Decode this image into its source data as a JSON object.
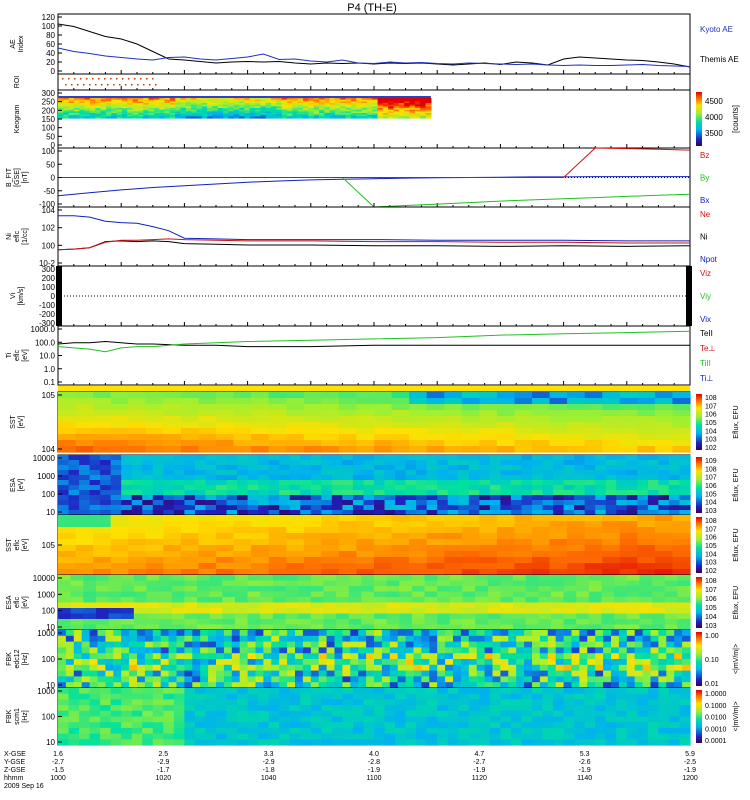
{
  "title": "P4 (TH-E)",
  "colors": {
    "kyoto": "#2030c0",
    "themis": "#000000",
    "red": "#d01010",
    "green": "#20c020",
    "blue": "#1020c0"
  },
  "chart_data": [
    {
      "id": "ae",
      "type": "line",
      "ylabel": "AE Index",
      "yticks": [
        "120",
        "100",
        "80",
        "60",
        "40",
        "20",
        "0"
      ],
      "legend": [
        "Kyoto AE",
        "Themis AE"
      ],
      "x": [
        1000,
        1005,
        1010,
        1015,
        1020,
        1025,
        1030,
        1035,
        1040,
        1045,
        1050,
        1055,
        1060,
        1065,
        1070,
        1075,
        1080,
        1085,
        1090,
        1095,
        1100,
        1105,
        1110,
        1115,
        1120,
        1125,
        1130,
        1135,
        1140,
        1145,
        1150,
        1155,
        1160,
        1165,
        1170,
        1175,
        1180,
        1185,
        1190,
        1195,
        1200
      ],
      "series": [
        {
          "name": "Kyoto AE",
          "values": [
            52,
            45,
            41,
            36,
            33,
            30,
            28,
            33,
            34,
            30,
            28,
            31,
            34,
            40,
            29,
            30,
            26,
            24,
            28,
            22,
            21,
            24,
            22,
            23,
            21,
            20,
            22,
            21,
            20,
            19,
            20,
            18,
            17,
            18,
            17,
            17,
            18,
            19,
            17,
            16,
            15
          ]
        },
        {
          "name": "Themis AE",
          "values": [
            100,
            95,
            85,
            75,
            70,
            60,
            45,
            30,
            28,
            25,
            22,
            24,
            25,
            24,
            25,
            22,
            20,
            22,
            21,
            22,
            20,
            22,
            21,
            22,
            20,
            18,
            20,
            22,
            19,
            24,
            22,
            18,
            30,
            34,
            32,
            30,
            28,
            27,
            24,
            20,
            14
          ]
        }
      ]
    },
    {
      "id": "roi",
      "type": "scatter",
      "ylabel": "ROI",
      "note": "region-of-interest markers 1000–1030"
    },
    {
      "id": "keogram",
      "type": "heatmap",
      "ylabel": "Keogram",
      "yticks": [
        "300",
        "250",
        "200",
        "150",
        "100",
        "50",
        "0"
      ],
      "colorbar_ticks": [
        "4500",
        "4000",
        "3500"
      ],
      "colorbar_label": "[counts]",
      "x_end": 1118
    },
    {
      "id": "bfield",
      "type": "line",
      "ylabel": "B_FIT [GSE] [nT]",
      "yticks": [
        "100",
        "50",
        "0",
        "-50",
        "-100"
      ],
      "ylim": [
        -100,
        100
      ],
      "legend": [
        "Bz",
        "By",
        "Bx"
      ],
      "x": [
        1000,
        1010,
        1020,
        1030,
        1040,
        1050,
        1060,
        1070,
        1080,
        1090,
        1100,
        1110,
        1120,
        1130,
        1140,
        1150,
        1160,
        1170,
        1180,
        1190,
        1200
      ],
      "series": [
        {
          "name": "Bx",
          "values": [
            -62,
            -52,
            -42,
            -34,
            -28,
            -22,
            -16,
            -12,
            -8,
            -6,
            -4,
            -2,
            -1,
            0,
            1,
            2,
            2,
            3,
            3,
            3,
            3
          ]
        },
        {
          "name": "By",
          "values": [
            null,
            null,
            null,
            null,
            null,
            null,
            null,
            null,
            null,
            null,
            -100,
            -95,
            -90,
            -85,
            -80,
            -76,
            -72,
            -68,
            -64,
            -60,
            -57
          ]
        },
        {
          "name": "Bz",
          "values": [
            null,
            null,
            null,
            null,
            null,
            null,
            null,
            null,
            null,
            null,
            null,
            null,
            null,
            null,
            null,
            null,
            null,
            100,
            98,
            96,
            93
          ]
        }
      ]
    },
    {
      "id": "density",
      "type": "line",
      "ylabel": "Ni eflc [1/cc]",
      "yticks": [
        "10^4",
        "10^2",
        "10^0",
        "10^-2"
      ],
      "legend": [
        "Ne",
        "Ni",
        "Npot"
      ],
      "x": [
        1000,
        1005,
        1010,
        1015,
        1020,
        1025,
        1030,
        1035,
        1040,
        1050,
        1060,
        1080,
        1100,
        1120,
        1140,
        1160,
        1180,
        1200
      ],
      "series": [
        {
          "name": "Npot",
          "values": [
            3.8,
            3.8,
            3.6,
            3.0,
            2.8,
            2.7,
            2.2,
            1.6,
            0.5,
            0.4,
            0.3,
            0.3,
            0.3,
            0.2,
            0.2,
            0.2,
            0.1,
            0.1
          ]
        },
        {
          "name": "Ne",
          "values": [
            -1.2,
            -1.1,
            -0.9,
            -0.1,
            0.2,
            0.2,
            0.3,
            0.4,
            0.3,
            0.2,
            0.1,
            0.1,
            0.0,
            0.0,
            -0.1,
            -0.1,
            -0.2,
            -0.2
          ]
        },
        {
          "name": "Ni",
          "values": [
            -1.2,
            -1.1,
            -0.9,
            0.0,
            0.1,
            0.0,
            0.1,
            0.0,
            -0.3,
            -0.4,
            -0.5,
            -0.5,
            -0.6,
            -0.6,
            -0.7,
            -0.6,
            -0.7,
            -0.6
          ]
        }
      ]
    },
    {
      "id": "velocity",
      "type": "line",
      "ylabel": "Vi [km/s]",
      "yticks": [
        "300",
        "200",
        "100",
        "0",
        "-100",
        "-200",
        "-300"
      ],
      "ylim": [
        -300,
        300
      ],
      "legend": [
        "Viz",
        "Viy",
        "Vix"
      ]
    },
    {
      "id": "temperature",
      "type": "line",
      "ylabel": "Ti eflc [eV]",
      "yticks": [
        "1000.0",
        "100.0",
        "10.0",
        "1.0",
        "0.1"
      ],
      "legend": [
        "TeII",
        "Te⊥",
        "TiII",
        "Ti⊥"
      ],
      "x": [
        1000,
        1005,
        1010,
        1015,
        1020,
        1025,
        1030,
        1040,
        1050,
        1060,
        1080,
        1100,
        1120,
        1140,
        1160,
        1180,
        1200
      ],
      "series": [
        {
          "name": "TeII",
          "values": [
            1.9,
            2.0,
            2.0,
            2.1,
            2.0,
            1.9,
            1.9,
            1.8,
            1.8,
            1.7,
            1.7,
            1.8,
            1.8,
            1.8,
            1.8,
            1.8,
            1.8
          ]
        },
        {
          "name": "TiII",
          "values": [
            1.7,
            1.6,
            1.5,
            1.3,
            1.6,
            1.7,
            1.7,
            1.9,
            2.0,
            2.1,
            2.2,
            2.3,
            2.4,
            2.6,
            2.7,
            2.8,
            2.9
          ]
        }
      ]
    },
    {
      "id": "sst_e",
      "type": "heatmap",
      "ylabel": "SST [eV]",
      "yticks": [
        "10^5",
        "10^4"
      ],
      "colorbar_ticks": [
        "10^8",
        "10^7",
        "10^6",
        "10^5",
        "10^4",
        "10^3",
        "10^2"
      ],
      "colorbar_label": "Eflux, EFU"
    },
    {
      "id": "esa_e",
      "type": "heatmap",
      "ylabel": "ESA [eV]",
      "yticks": [
        "10000",
        "1000",
        "100",
        "10"
      ],
      "colorbar_ticks": [
        "10^9",
        "10^8",
        "10^7",
        "10^6",
        "10^5",
        "10^4",
        "10^3"
      ],
      "colorbar_label": "Eflux, EFU"
    },
    {
      "id": "sst_i",
      "type": "heatmap",
      "ylabel": "SST eflc [eV]",
      "yticks": [
        "10^5"
      ],
      "colorbar_ticks": [
        "10^8",
        "10^7",
        "10^6",
        "10^5",
        "10^4",
        "10^3",
        "10^2"
      ],
      "colorbar_label": "Eflux, EFU"
    },
    {
      "id": "esa_i",
      "type": "heatmap",
      "ylabel": "ESA eflc [eV]",
      "yticks": [
        "10000",
        "1000",
        "100",
        "10"
      ],
      "colorbar_ticks": [
        "10^8",
        "10^7",
        "10^6",
        "10^5",
        "10^4",
        "10^3"
      ],
      "colorbar_label": "Eflux, EFU"
    },
    {
      "id": "fbk_e",
      "type": "heatmap",
      "ylabel": "FBK edc12 [Hz]",
      "yticks": [
        "1000",
        "100",
        "10"
      ],
      "colorbar_ticks": [
        "1.00",
        "0.10",
        "0.01"
      ],
      "colorbar_label": "<|mV/m|>"
    },
    {
      "id": "fbk_b",
      "type": "heatmap",
      "ylabel": "FBK scm1 [Hz]",
      "yticks": [
        "1000",
        "100",
        "10"
      ],
      "colorbar_ticks": [
        "1.0000",
        "0.1000",
        "0.0100",
        "0.0010",
        "0.0001"
      ],
      "colorbar_label": "<|mV/m|>"
    }
  ],
  "xaxis": {
    "rows": [
      {
        "label": "X-GSE",
        "values": [
          "1.6",
          "2.5",
          "3.3",
          "4.0",
          "4.7",
          "5.3",
          "5.9"
        ]
      },
      {
        "label": "Y-GSE",
        "values": [
          "-2.7",
          "-2.9",
          "-2.9",
          "-2.8",
          "-2.7",
          "-2.6",
          "-2.5"
        ]
      },
      {
        "label": "Z-GSE",
        "values": [
          "-1.5",
          "-1.7",
          "-1.8",
          "-1.9",
          "-1.9",
          "-1.9",
          "-1.9"
        ]
      },
      {
        "label": "hhmm",
        "values": [
          "1000",
          "1020",
          "1040",
          "1100",
          "1120",
          "1140",
          "1200"
        ]
      }
    ],
    "date": "2009 Sep 16"
  }
}
